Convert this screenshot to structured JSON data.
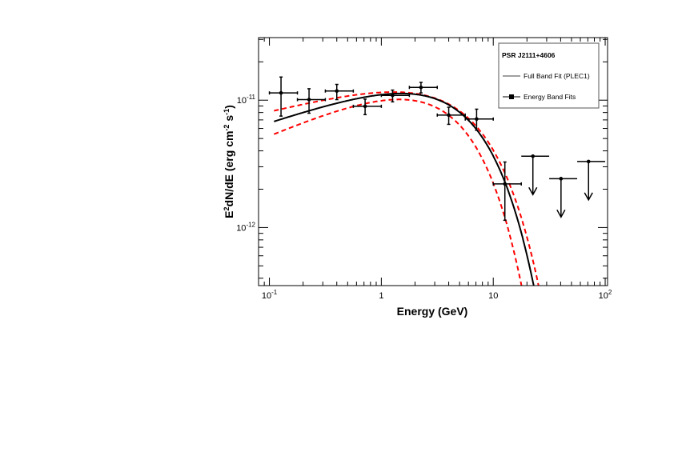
{
  "chart_data": {
    "type": "scatter",
    "xlabel": "Energy (GeV)",
    "ylabel": {
      "base": "E",
      "sup1": "2",
      "mid": "dN/dE (erg cm",
      "sup2": "-2",
      "mid2": " s",
      "sup3": "-1",
      "end": ")"
    },
    "xscale": "log",
    "yscale": "log",
    "xlim": [
      0.08,
      105
    ],
    "ylim": [
      3.5e-13,
      3.1e-11
    ],
    "x_ticks": [
      {
        "value": 0.1,
        "base": "10",
        "exp": "-1"
      },
      {
        "value": 1,
        "base": "1",
        "exp": ""
      },
      {
        "value": 10,
        "base": "10",
        "exp": ""
      },
      {
        "value": 100,
        "base": "10",
        "exp": "2"
      }
    ],
    "y_ticks": [
      {
        "value": 1e-11,
        "base": "10",
        "exp": "-11"
      },
      {
        "value": 1e-12,
        "base": "10",
        "exp": "-12"
      }
    ],
    "legend": {
      "position": "top-right",
      "title": "PSR J2111+4606",
      "entries": [
        "Full Band Fit (PLEC1)",
        "Energy Band Fits"
      ]
    },
    "points": [
      {
        "x": 0.127,
        "xlo": 0.1,
        "xhi": 0.178,
        "y": 1.14e-11,
        "ylo": 7.5e-12,
        "yhi": 1.52e-11
      },
      {
        "x": 0.226,
        "xlo": 0.178,
        "xhi": 0.316,
        "y": 1.01e-11,
        "ylo": 7.9e-12,
        "yhi": 1.23e-11
      },
      {
        "x": 0.4,
        "xlo": 0.316,
        "xhi": 0.562,
        "y": 1.18e-11,
        "ylo": 1.01e-11,
        "yhi": 1.33e-11
      },
      {
        "x": 0.716,
        "xlo": 0.562,
        "xhi": 1.0,
        "y": 8.95e-12,
        "ylo": 7.7e-12,
        "yhi": 1.02e-11
      },
      {
        "x": 1.26,
        "xlo": 1.0,
        "xhi": 1.78,
        "y": 1.09e-11,
        "ylo": 9.7e-12,
        "yhi": 1.2e-11
      },
      {
        "x": 2.26,
        "xlo": 1.78,
        "xhi": 3.16,
        "y": 1.26e-11,
        "ylo": 1.14e-11,
        "yhi": 1.38e-11
      },
      {
        "x": 4.0,
        "xlo": 3.16,
        "xhi": 5.62,
        "y": 7.64e-12,
        "ylo": 6.46e-12,
        "yhi": 8.8e-12
      },
      {
        "x": 7.1,
        "xlo": 5.62,
        "xhi": 10.0,
        "y": 7.11e-12,
        "ylo": 5.8e-12,
        "yhi": 8.5e-12
      },
      {
        "x": 12.7,
        "xlo": 10.0,
        "xhi": 17.8,
        "y": 2.2e-12,
        "ylo": 1.14e-12,
        "yhi": 3.27e-12
      }
    ],
    "upper_limits": [
      {
        "x": 22.6,
        "xlo": 17.8,
        "xhi": 31.6,
        "y": 3.63e-12
      },
      {
        "x": 40.3,
        "xlo": 31.6,
        "xhi": 56.2,
        "y": 2.42e-12
      },
      {
        "x": 71.0,
        "xlo": 56.2,
        "xhi": 100,
        "y": 3.3e-12
      }
    ],
    "model": {
      "name": "PLEC1",
      "log10_K": -10.87,
      "index_2_minus_gamma": 0.3,
      "Ecut_GeV": 5.0,
      "color": "#000000"
    },
    "band_upper": {
      "log10_K": -10.864,
      "index_2_minus_gamma": 0.22,
      "Ecut_GeV": 5.8,
      "color": "#ff0000"
    },
    "band_lower": {
      "log10_K": -10.89,
      "index_2_minus_gamma": 0.38,
      "Ecut_GeV": 3.8,
      "color": "#ff0000"
    }
  }
}
